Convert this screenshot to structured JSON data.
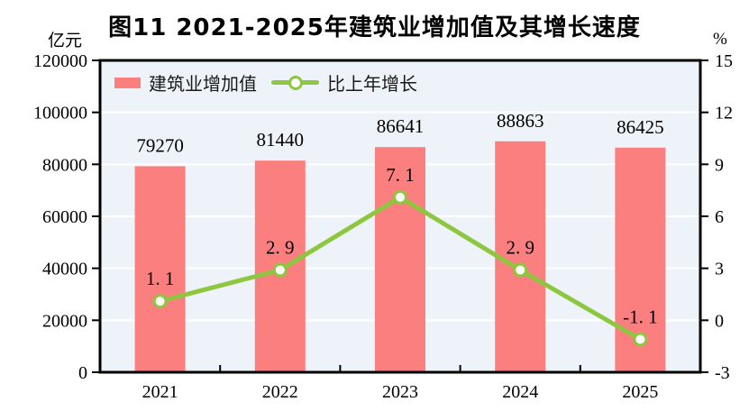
{
  "title": "图11  2021-2025年建筑业增加值及其增长速度",
  "axes": {
    "left_unit": "亿元",
    "right_unit": "%"
  },
  "legend": {
    "items": [
      {
        "label": "建筑业增加值",
        "marker": "bar-swatch"
      },
      {
        "label": "比上年增长",
        "marker": "line-swatch"
      }
    ]
  },
  "colors": {
    "bar": "#FB7F7F",
    "line": "#8DC63F",
    "marker_fill": "#FFFFFF",
    "plot_bg": "#EDF3F8",
    "grid": "#FFFFFF",
    "frame": "#000000",
    "text": "#000000"
  },
  "chart_data": {
    "type": "bar",
    "title": "图11  2021-2025年建筑业增加值及其增长速度",
    "categories": [
      "2021",
      "2022",
      "2023",
      "2024",
      "2025"
    ],
    "series": [
      {
        "name": "建筑业增加值",
        "type": "bar",
        "axis": "left",
        "unit": "亿元",
        "values": [
          79270,
          81440,
          86641,
          88863,
          86425
        ],
        "labels": [
          "79270",
          "81440",
          "86641",
          "88863",
          "86425"
        ]
      },
      {
        "name": "比上年增长",
        "type": "line",
        "axis": "right",
        "unit": "%",
        "values": [
          1.1,
          2.9,
          7.1,
          2.9,
          -1.1
        ],
        "labels": [
          "1. 1",
          "2. 9",
          "7. 1",
          "2. 9",
          "-1. 1"
        ]
      }
    ],
    "left_axis": {
      "label": "亿元",
      "min": 0,
      "max": 120000,
      "step": 20000,
      "tick_labels": [
        "0",
        "20000",
        "40000",
        "60000",
        "80000",
        "100000",
        "120000"
      ]
    },
    "right_axis": {
      "label": "%",
      "min": -3,
      "max": 15,
      "step": 3,
      "tick_labels": [
        "-3",
        "0",
        "3",
        "6",
        "9",
        "12",
        "15"
      ]
    },
    "grid": "horizontal",
    "legend_position": "top-left-inside"
  }
}
